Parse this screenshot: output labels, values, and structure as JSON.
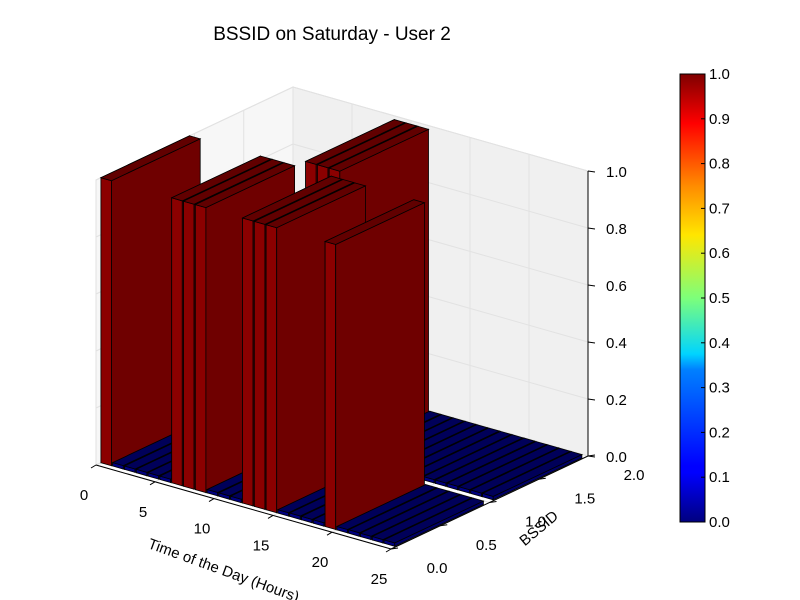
{
  "chart_data": {
    "type": "bar3d",
    "title": "BSSID on Saturday - User 2",
    "xlabel": "Time of the Day (Hours)",
    "ylabel": "BSSID",
    "zlabel": "",
    "xlim": [
      0,
      25
    ],
    "ylim": [
      0,
      2
    ],
    "zlim": [
      0,
      1
    ],
    "x_ticks": [
      "0",
      "5",
      "10",
      "15",
      "20",
      "25"
    ],
    "y_ticks": [
      "0.0",
      "0.5",
      "1.0",
      "1.5",
      "2.0"
    ],
    "z_ticks": [
      "0.0",
      "0.2",
      "0.4",
      "0.6",
      "0.8",
      "1.0"
    ],
    "grid": true,
    "colormap": "jet",
    "colorbar": {
      "range": [
        0,
        1
      ],
      "ticks": [
        "0.0",
        "0.1",
        "0.2",
        "0.3",
        "0.4",
        "0.5",
        "0.6",
        "0.7",
        "0.8",
        "0.9",
        "1.0"
      ]
    },
    "bssid_1_hours": [
      9,
      10,
      11
    ],
    "bssid_0_hours": [
      0,
      6,
      7,
      8,
      12,
      13,
      14,
      19
    ],
    "value_present": 1,
    "value_absent": 0,
    "colors": {
      "high": "#8b0000",
      "low": "#00007f",
      "pane": "#f2f2f2"
    }
  }
}
